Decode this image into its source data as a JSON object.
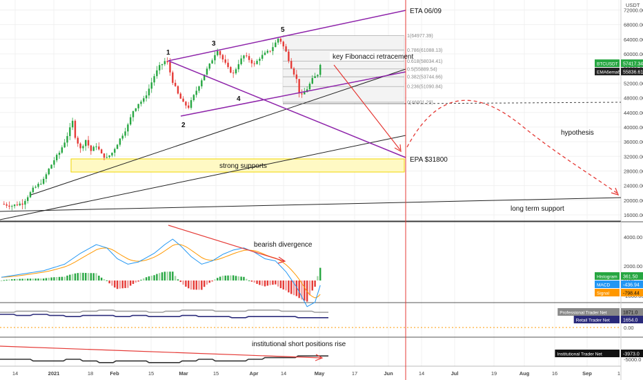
{
  "chart_data": {
    "type": "candlestick",
    "symbol": "BTCUSDT",
    "currency": "USDT",
    "x_axis_labels": [
      "14",
      "2021",
      "18",
      "Feb",
      "15",
      "Mar",
      "15",
      "Apr",
      "14",
      "May",
      "17",
      "Jun",
      "14",
      "Jul",
      "19",
      "Aug",
      "16",
      "Sep",
      "1"
    ],
    "price_axis_labels": [
      "72000.00",
      "68000.00",
      "64000.00",
      "60000.00",
      "56000.00",
      "52000.00",
      "48000.00",
      "44000.00",
      "40000.00",
      "36000.00",
      "32000.00",
      "28000.00",
      "24000.00",
      "20000.00",
      "16000.00"
    ],
    "price_range": [
      14000,
      74000
    ],
    "macd_axis_labels": [
      "4000.00",
      "2000.00",
      "0.00",
      "-2000.00"
    ],
    "trader_axis_labels": [
      "0.00",
      "-5000.0"
    ],
    "price_tags": [
      {
        "label": "BTCUSDT",
        "value": "57417.34",
        "color": "#26a641"
      },
      {
        "label": "EMA6ema6",
        "value": "55836.61",
        "color": "#222222"
      }
    ],
    "macd_tags": [
      {
        "label": "Histogram",
        "value": "361.50",
        "color": "#26a641"
      },
      {
        "label": "MACD",
        "value": "-436.94",
        "color": "#2196f3"
      },
      {
        "label": "Signal",
        "value": "-798.44",
        "color": "#ff9800"
      }
    ],
    "trader_tags": [
      {
        "label": "Professional Trader Net",
        "value": "1871.0",
        "color": "#888888"
      },
      {
        "label": "Retail Trader Net",
        "value": "1654.0",
        "color": "#2a2a7a"
      },
      {
        "label": "Institutional Trader Net",
        "value": "-3973.0",
        "color": "#111111"
      }
    ],
    "fibonacci": [
      {
        "ratio": "1",
        "price": "64977.39",
        "value": 64977.39
      },
      {
        "ratio": "0.786",
        "price": "61088.13",
        "value": 61088.13
      },
      {
        "ratio": "0.618",
        "price": "58034.41",
        "value": 58034.41
      },
      {
        "ratio": "0.5",
        "price": "55889.54",
        "value": 55889.54
      },
      {
        "ratio": "0.382",
        "price": "53744.66",
        "value": 53744.66
      },
      {
        "ratio": "0.236",
        "price": "51090.84",
        "value": 51090.84
      },
      {
        "ratio": "0",
        "price": "46801.29",
        "value": 46801.29
      }
    ],
    "wave_labels": [
      "1",
      "2",
      "3",
      "4",
      "5"
    ],
    "annotations": {
      "eta": "ETA  06/09",
      "epa": "EPA  $31800",
      "fib": "key Fibonacci retracement",
      "supports": "strong supports",
      "hypothesis": "hypothesis",
      "long_term": "long term support",
      "divergence": "bearish divergence",
      "institutional": "institutional short positions rise"
    },
    "colors": {
      "up": "#26a641",
      "down": "#e53935",
      "channel": "#8e24aa",
      "arrow": "#e53935",
      "support_zone": "#fff9c4"
    },
    "close_price_path": [
      [
        0,
        19000
      ],
      [
        4,
        18500
      ],
      [
        8,
        19200
      ],
      [
        12,
        23000
      ],
      [
        16,
        25500
      ],
      [
        18,
        28500
      ],
      [
        20,
        31000
      ],
      [
        22,
        33000
      ],
      [
        24,
        36000
      ],
      [
        26,
        39500
      ],
      [
        27,
        41500
      ],
      [
        28,
        37500
      ],
      [
        30,
        34000
      ],
      [
        32,
        36500
      ],
      [
        34,
        33500
      ],
      [
        36,
        35000
      ],
      [
        38,
        32500
      ],
      [
        40,
        31500
      ],
      [
        42,
        33000
      ],
      [
        44,
        35500
      ],
      [
        46,
        38000
      ],
      [
        48,
        40500
      ],
      [
        50,
        44500
      ],
      [
        52,
        46500
      ],
      [
        54,
        47500
      ],
      [
        56,
        50500
      ],
      [
        58,
        54000
      ],
      [
        60,
        56500
      ],
      [
        62,
        58000
      ],
      [
        63,
        57500
      ],
      [
        65,
        52500
      ],
      [
        67,
        49000
      ],
      [
        69,
        46500
      ],
      [
        71,
        45500
      ],
      [
        73,
        48500
      ],
      [
        75,
        51500
      ],
      [
        77,
        54500
      ],
      [
        79,
        57000
      ],
      [
        81,
        60000
      ],
      [
        82,
        61200
      ],
      [
        84,
        58500
      ],
      [
        86,
        56000
      ],
      [
        88,
        54500
      ],
      [
        90,
        57500
      ],
      [
        92,
        59500
      ],
      [
        94,
        58500
      ],
      [
        96,
        57000
      ],
      [
        98,
        59000
      ],
      [
        100,
        60000
      ],
      [
        102,
        61000
      ],
      [
        104,
        63000
      ],
      [
        105,
        64200
      ],
      [
        106,
        63500
      ],
      [
        108,
        60500
      ],
      [
        110,
        56500
      ],
      [
        112,
        53000
      ],
      [
        113,
        49500
      ],
      [
        114,
        48500
      ],
      [
        116,
        50500
      ],
      [
        118,
        53000
      ],
      [
        120,
        54500
      ],
      [
        121,
        57400
      ]
    ],
    "macd_path": [
      [
        0,
        300
      ],
      [
        8,
        600
      ],
      [
        16,
        900
      ],
      [
        24,
        1500
      ],
      [
        30,
        2500
      ],
      [
        36,
        3300
      ],
      [
        40,
        3000
      ],
      [
        44,
        2000
      ],
      [
        48,
        1500
      ],
      [
        52,
        1700
      ],
      [
        58,
        2500
      ],
      [
        62,
        3300
      ],
      [
        65,
        3800
      ],
      [
        68,
        3200
      ],
      [
        72,
        2200
      ],
      [
        76,
        1500
      ],
      [
        80,
        1800
      ],
      [
        84,
        2400
      ],
      [
        88,
        2800
      ],
      [
        92,
        3000
      ],
      [
        96,
        2600
      ],
      [
        100,
        2000
      ],
      [
        104,
        1800
      ],
      [
        108,
        800
      ],
      [
        112,
        -600
      ],
      [
        116,
        -2400
      ],
      [
        119,
        -2000
      ],
      [
        121,
        -440
      ]
    ]
  }
}
